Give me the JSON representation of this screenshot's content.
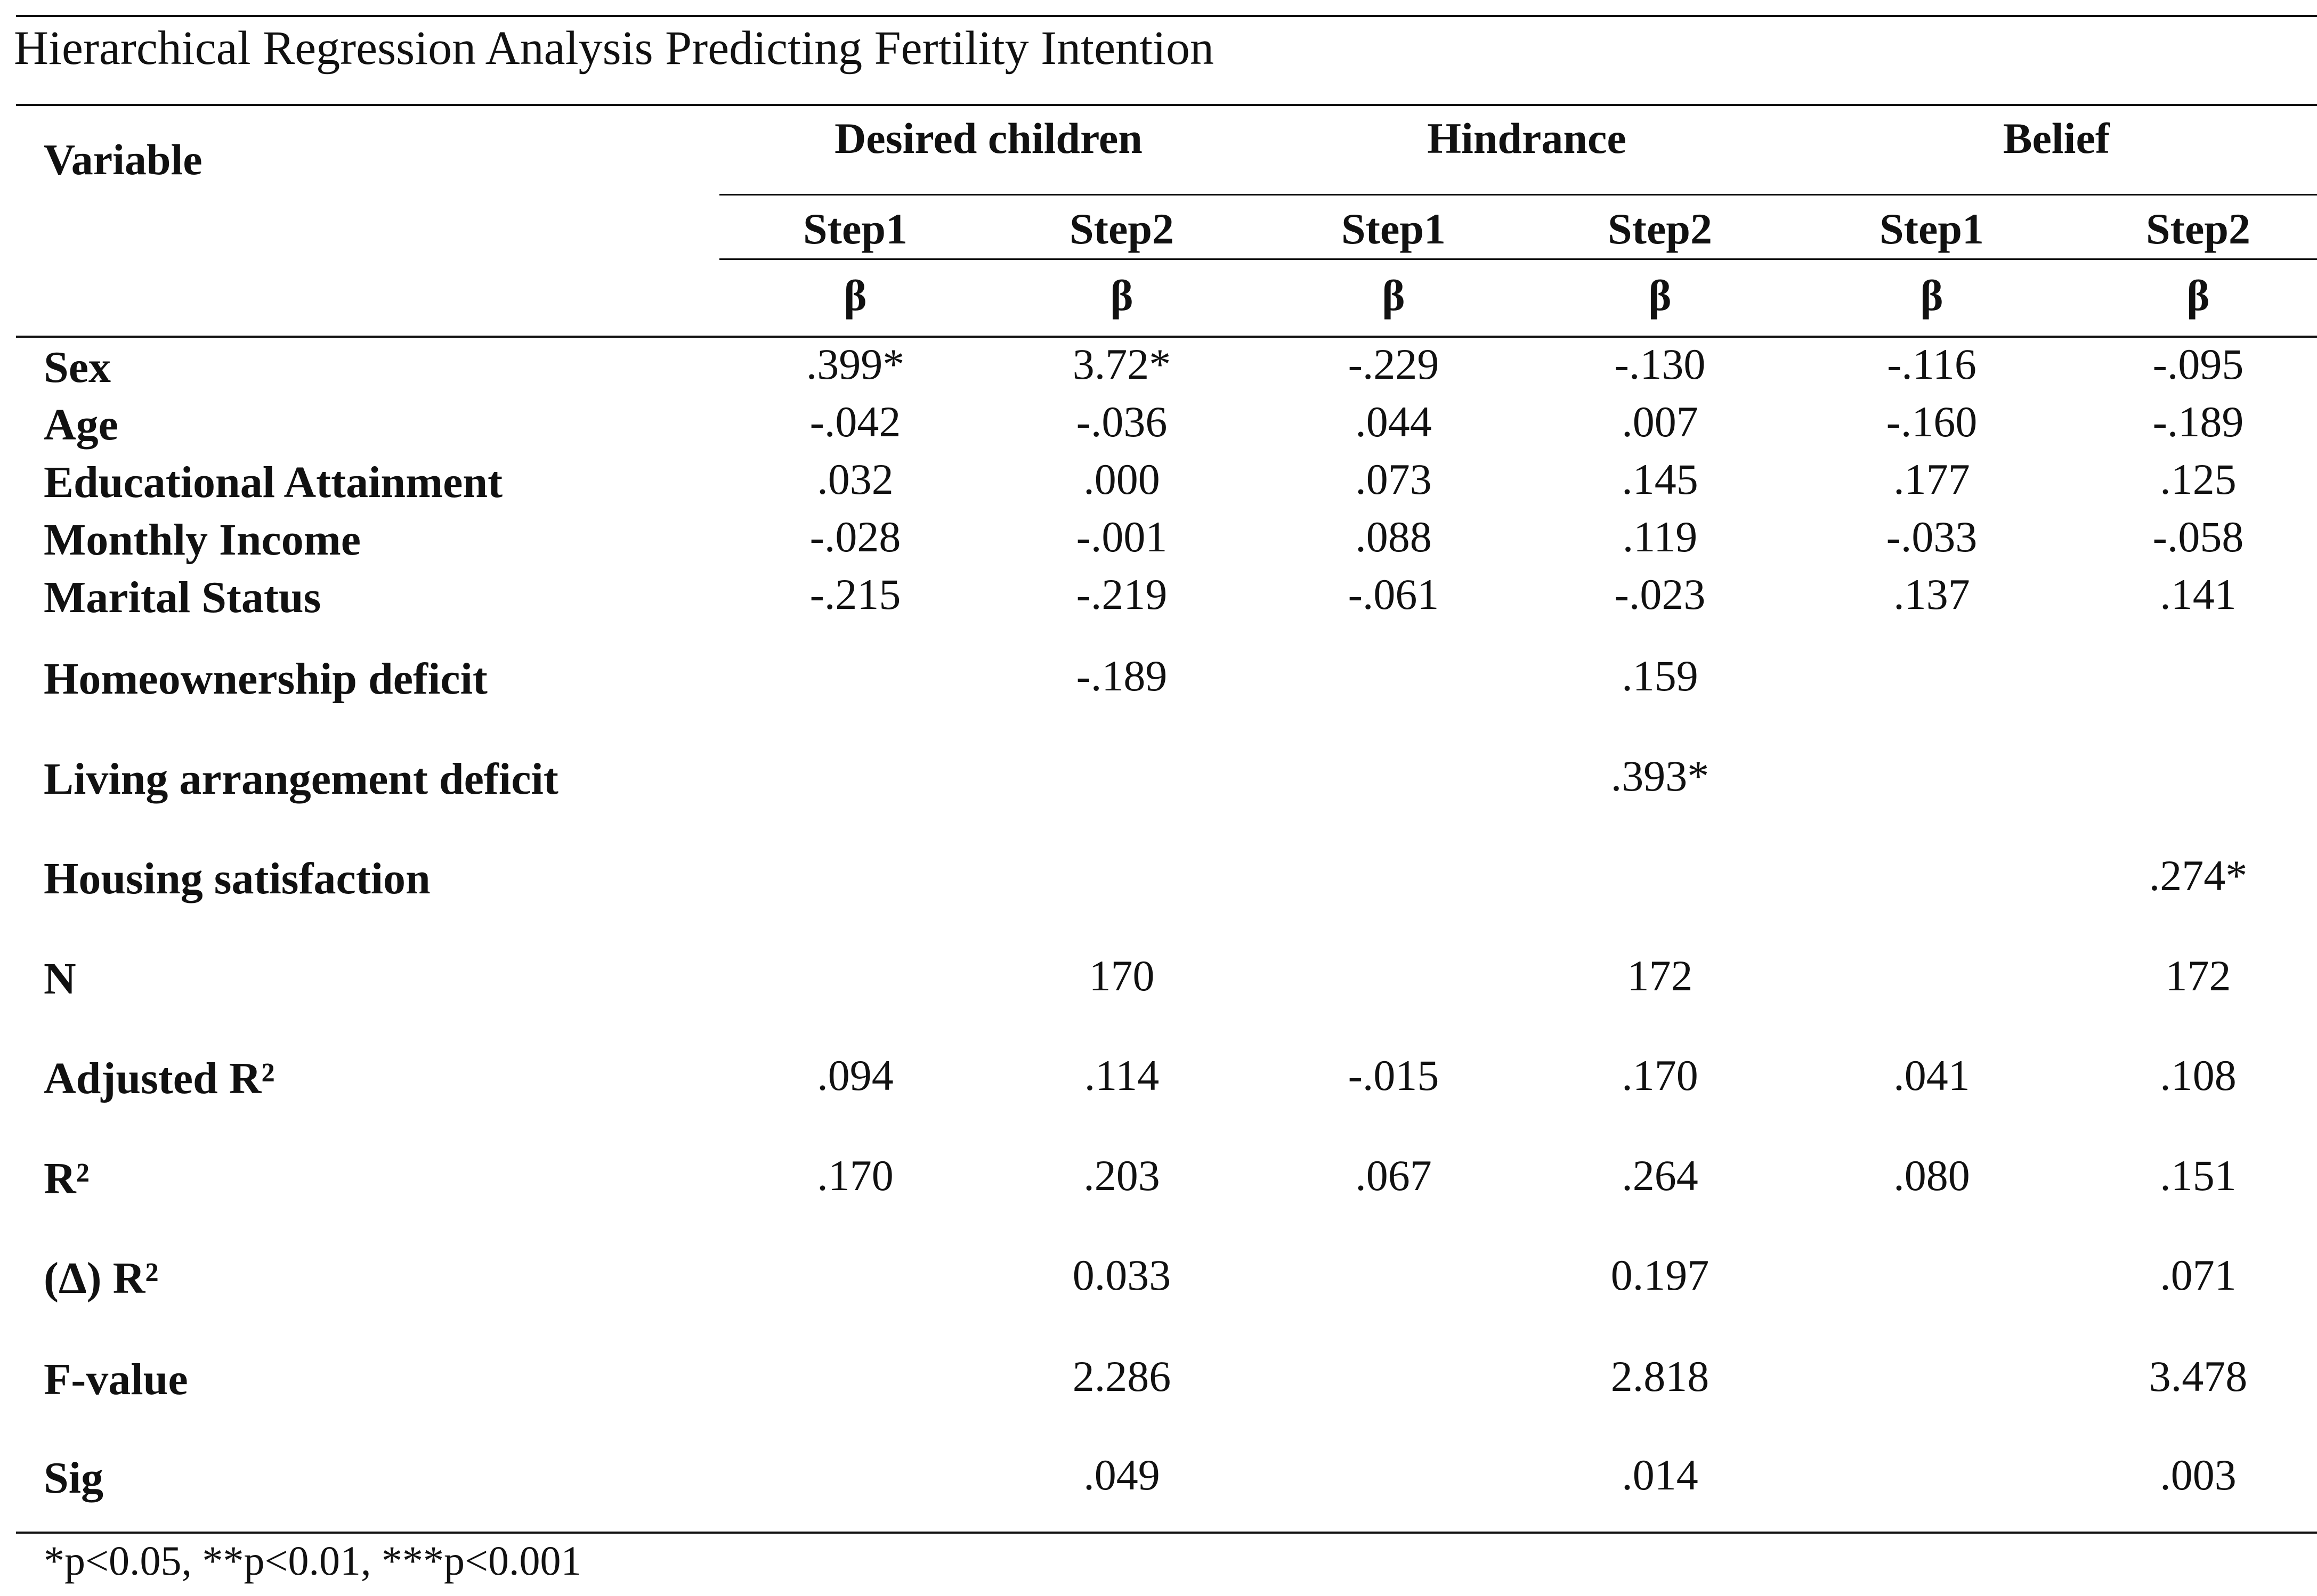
{
  "caption": "Hierarchical Regression Analysis Predicting Fertility Intention",
  "table": {
    "variable_header": "Variable",
    "groups": [
      "Desired children",
      "Hindrance",
      "Belief"
    ],
    "steps": [
      "Step1",
      "Step2",
      "Step1",
      "Step2",
      "Step1",
      "Step2"
    ],
    "beta_symbol": "β",
    "rows": [
      {
        "label": "Sex",
        "values": [
          ".399*",
          "3.72*",
          "-.229",
          "-.130",
          "-.116",
          "-.095"
        ]
      },
      {
        "label": "Age",
        "values": [
          "-.042",
          "-.036",
          ".044",
          ".007",
          "-.160",
          "-.189"
        ]
      },
      {
        "label": "Educational Attainment",
        "values": [
          ".032",
          ".000",
          ".073",
          ".145",
          ".177",
          ".125"
        ]
      },
      {
        "label": "Monthly Income",
        "values": [
          "-.028",
          "-.001",
          ".088",
          ".119",
          "-.033",
          "-.058"
        ]
      },
      {
        "label": "Marital Status",
        "values": [
          "-.215",
          "-.219",
          "-.061",
          "-.023",
          ".137",
          ".141"
        ]
      },
      {
        "label": "Homeownership deficit",
        "values": [
          "",
          "-.189",
          "",
          ".159",
          "",
          ""
        ]
      },
      {
        "label": "Living arrangement deficit",
        "values": [
          "",
          "",
          "",
          ".393*",
          "",
          ""
        ]
      },
      {
        "label": "Housing satisfaction",
        "values": [
          "",
          "",
          "",
          "",
          "",
          ".274*"
        ]
      },
      {
        "label": "N",
        "values": [
          "",
          "170",
          "",
          "172",
          "",
          "172"
        ]
      },
      {
        "label": "Adjusted R²",
        "values": [
          ".094",
          ".114",
          "-.015",
          ".170",
          ".041",
          ".108"
        ]
      },
      {
        "label": "R²",
        "values": [
          ".170",
          ".203",
          ".067",
          ".264",
          ".080",
          ".151"
        ]
      },
      {
        "label": "(Δ) R²",
        "values": [
          "",
          "0.033",
          "",
          "0.197",
          "",
          ".071"
        ]
      },
      {
        "label": "F-value",
        "values": [
          "",
          "2.286",
          "",
          "2.818",
          "",
          "3.478"
        ]
      },
      {
        "label": "Sig",
        "values": [
          "",
          ".049",
          "",
          ".014",
          "",
          ".003"
        ]
      }
    ]
  },
  "footnote": "*p<0.05, **p<0.01, ***p<0.001"
}
